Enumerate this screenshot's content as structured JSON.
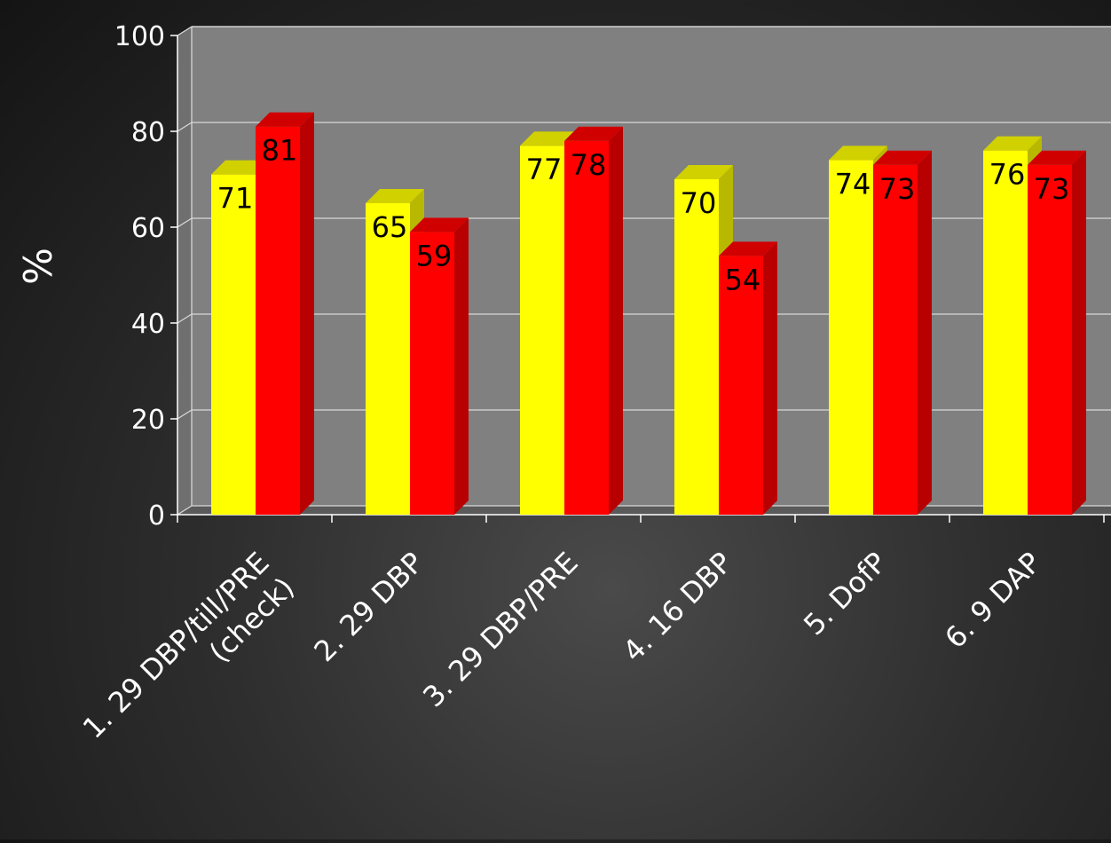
{
  "chart_data": {
    "type": "bar",
    "style": "3d-clustered-column",
    "title": "",
    "xlabel": "",
    "ylabel": "%",
    "ylim": [
      0,
      100
    ],
    "yticks": [
      0,
      20,
      40,
      60,
      80,
      100
    ],
    "grid": true,
    "legend": "none",
    "categories": [
      [
        "1. 29 DBP/till/PRE",
        "(check)"
      ],
      [
        "2. 29 DBP"
      ],
      [
        "3. 29 DBP/PRE"
      ],
      [
        "4. 16 DBP"
      ],
      [
        "5. DofP"
      ],
      [
        "6. 9 DAP"
      ]
    ],
    "series": [
      {
        "color": "#ffff00",
        "values": [
          71,
          65,
          77,
          70,
          74,
          76
        ]
      },
      {
        "color": "#ff0000",
        "values": [
          81,
          59,
          78,
          54,
          73,
          73
        ]
      }
    ]
  }
}
